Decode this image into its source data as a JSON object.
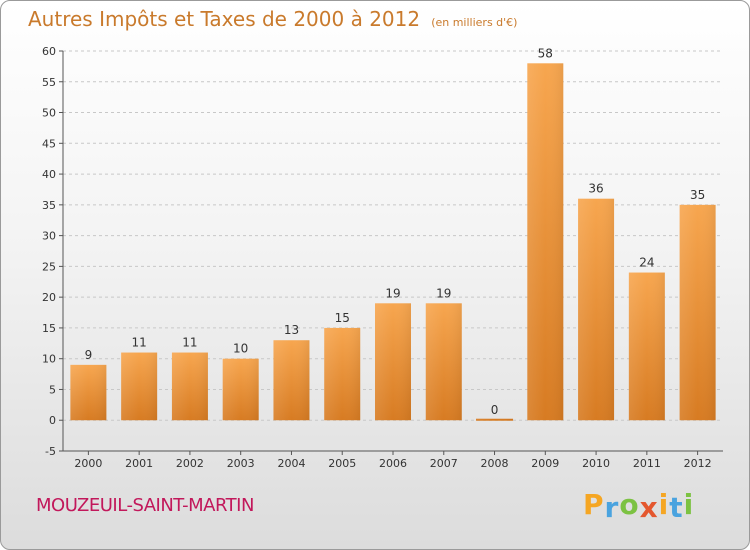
{
  "title": "Autres Impôts et Taxes de 2000 à 2012",
  "unit": "(en milliers d'€)",
  "commune": "MOUZEUIL-SAINT-MARTIN",
  "brand": {
    "letters": [
      "P",
      "r",
      "o",
      "x",
      "i",
      "t",
      "i"
    ],
    "colors": [
      "#f5a623",
      "#4aa3df",
      "#7cc242",
      "#e4572e",
      "#f5a623",
      "#4aa3df",
      "#7cc242"
    ]
  },
  "chart_data": {
    "type": "bar",
    "title": "Autres Impôts et Taxes de 2000 à 2012",
    "subtitle": "(en milliers d'€)",
    "categories": [
      "2000",
      "2001",
      "2002",
      "2003",
      "2004",
      "2005",
      "2006",
      "2007",
      "2008",
      "2009",
      "2010",
      "2011",
      "2012"
    ],
    "values": [
      9,
      11,
      11,
      10,
      13,
      15,
      19,
      19,
      0,
      58,
      36,
      24,
      35
    ],
    "ylim": [
      -5,
      60
    ],
    "yticks": [
      -5,
      0,
      5,
      10,
      15,
      20,
      25,
      30,
      35,
      40,
      45,
      50,
      55,
      60
    ],
    "grid": true,
    "bar_color": "#f0a04b"
  }
}
